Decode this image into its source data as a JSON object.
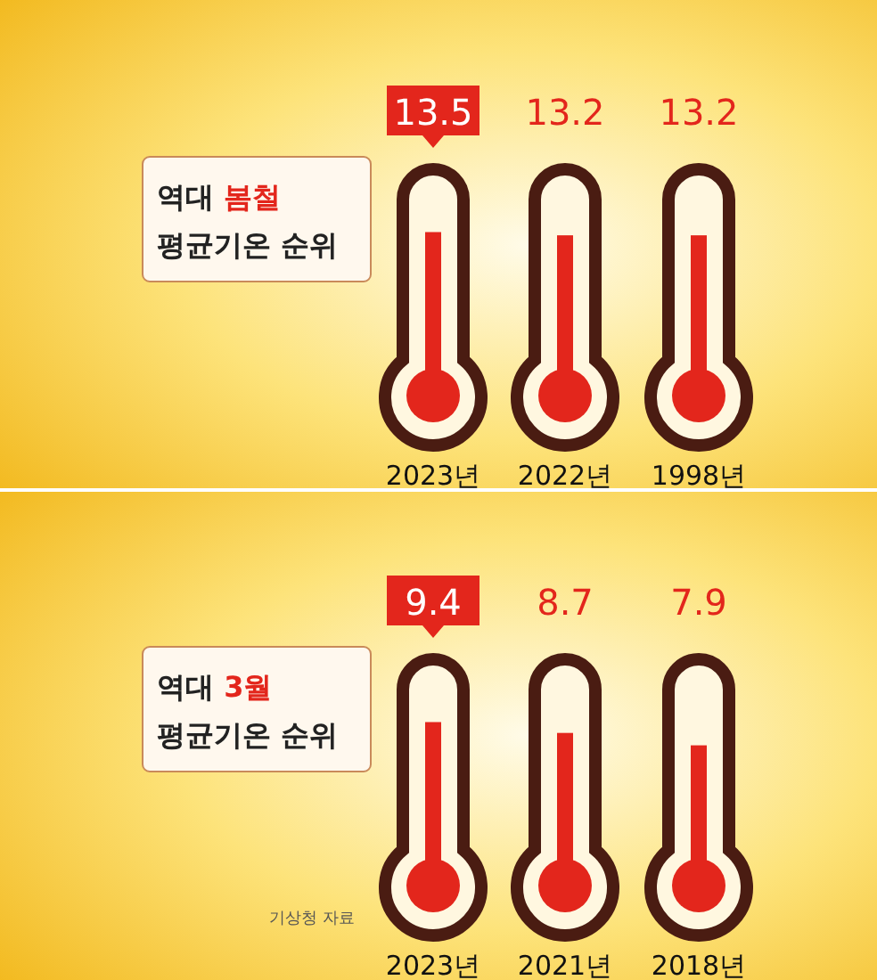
{
  "chart_data": [
    {
      "type": "bar",
      "title": "역대 봄철 평균기온 순위",
      "categories": [
        "2023년",
        "2022년",
        "1998년"
      ],
      "values": [
        13.5,
        13.2,
        13.2
      ],
      "color": "#e3261c",
      "data_labels": true
    },
    {
      "type": "bar",
      "title": "역대 3월 평균기온 순위",
      "categories": [
        "2023년",
        "2021년",
        "2018년"
      ],
      "values": [
        9.4,
        8.7,
        7.9
      ],
      "color": "#e3261c",
      "data_labels": true,
      "annotations": [
        "기상청 자료"
      ]
    }
  ]
}
